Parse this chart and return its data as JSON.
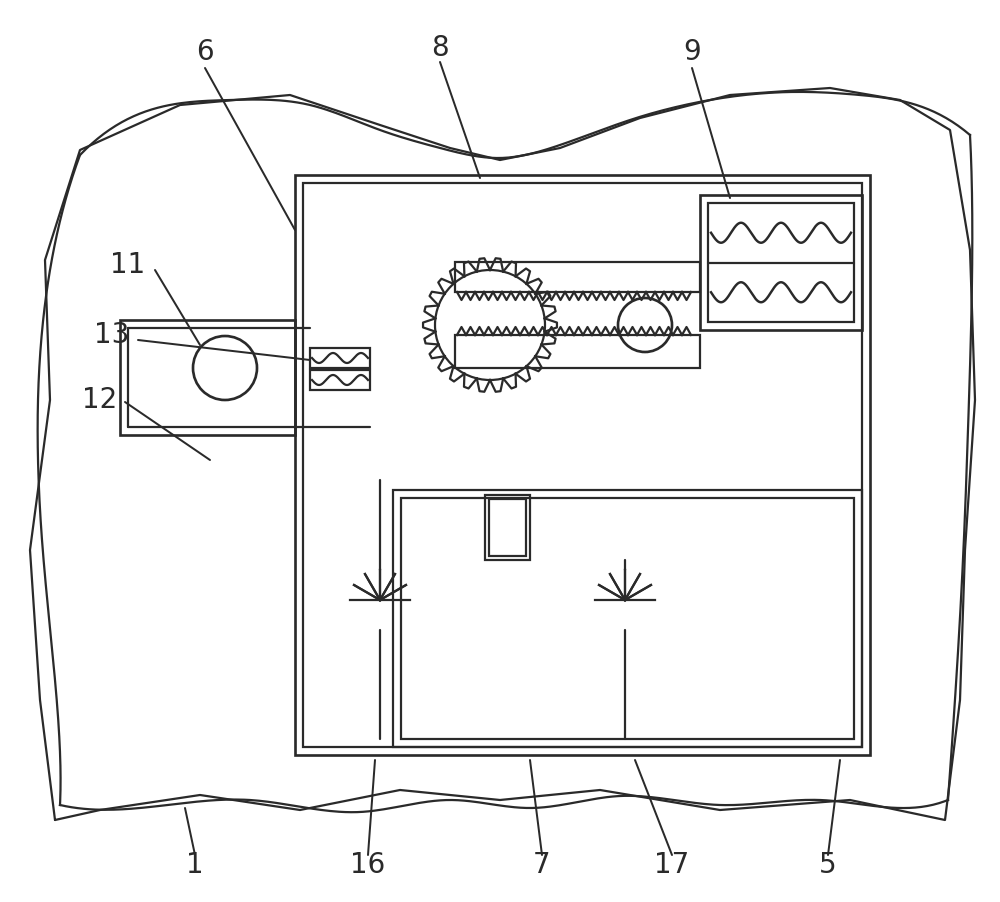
{
  "bg_color": "#ffffff",
  "line_color": "#2a2a2a",
  "lw": 1.6,
  "fig_w": 10.0,
  "fig_h": 9.02
}
